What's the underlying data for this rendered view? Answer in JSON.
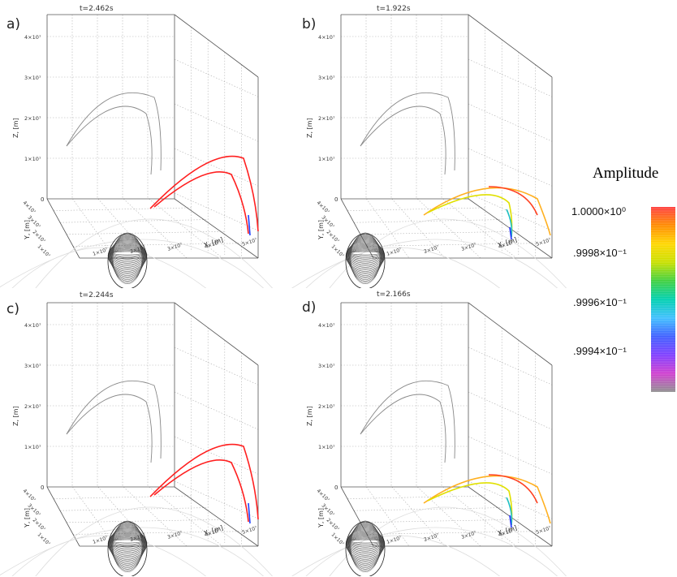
{
  "panels": [
    {
      "label": "a)",
      "time": "t=2.462s"
    },
    {
      "label": "b)",
      "time": "t=1.922s"
    },
    {
      "label": "c)",
      "time": "t=2.244s"
    },
    {
      "label": "d)",
      "time": "t=2.166s"
    }
  ],
  "axes": {
    "z_label": "Z, [m]",
    "y_label": "Y, [m]",
    "x_label": "X, [m]",
    "z_ticks": [
      "1×10⁷",
      "2×10⁷",
      "3×10⁷",
      "4×10⁷"
    ],
    "y_ticks": [
      "1×10⁷",
      "2×10⁷",
      "3×10⁷",
      "4×10⁷"
    ],
    "x_ticks": [
      "1×10⁷",
      "2×10⁷",
      "3×10⁷",
      "4×10⁷",
      "5×10⁷"
    ],
    "origin_tick": "0"
  },
  "colorbar": {
    "title": "Amplitude",
    "tick_labels": [
      "1.0000×10⁰",
      ".9998×10⁻¹",
      ".9996×10⁻¹",
      ".9994×10⁻¹"
    ],
    "colormap": [
      "#ff4040",
      "#ff8c00",
      "#ffd700",
      "#c8e000",
      "#40d040",
      "#00d0b0",
      "#40c0ff",
      "#4060ff",
      "#8040ff",
      "#d040d0",
      "#909090"
    ]
  },
  "chart_data": [
    {
      "type": "line",
      "panel": "a)",
      "title": "t=2.462s",
      "zlabel": "Z, [m]",
      "ylabel": "Y, [m]",
      "xlabel": "X, [m]",
      "zlim": [
        0,
        40000000
      ],
      "amplitude_range": "high (red)"
    },
    {
      "type": "line",
      "panel": "b)",
      "title": "t=1.922s",
      "zlabel": "Z, [m]",
      "ylabel": "Y, [m]",
      "xlabel": "X, [m]",
      "zlim": [
        0,
        40000000
      ],
      "amplitude_range": "mixed (orange-yellow-green-blue)"
    },
    {
      "type": "line",
      "panel": "c)",
      "title": "t=2.244s",
      "zlabel": "Z, [m]",
      "ylabel": "Y, [m]",
      "xlabel": "X, [m]",
      "zlim": [
        0,
        40000000
      ],
      "amplitude_range": "high (red)"
    },
    {
      "type": "line",
      "panel": "d)",
      "title": "t=2.166s",
      "zlabel": "Z, [m]",
      "ylabel": "Y, [m]",
      "xlabel": "X, [m]",
      "zlim": [
        0,
        40000000
      ],
      "amplitude_range": "mixed (orange-yellow-green-blue)"
    }
  ]
}
